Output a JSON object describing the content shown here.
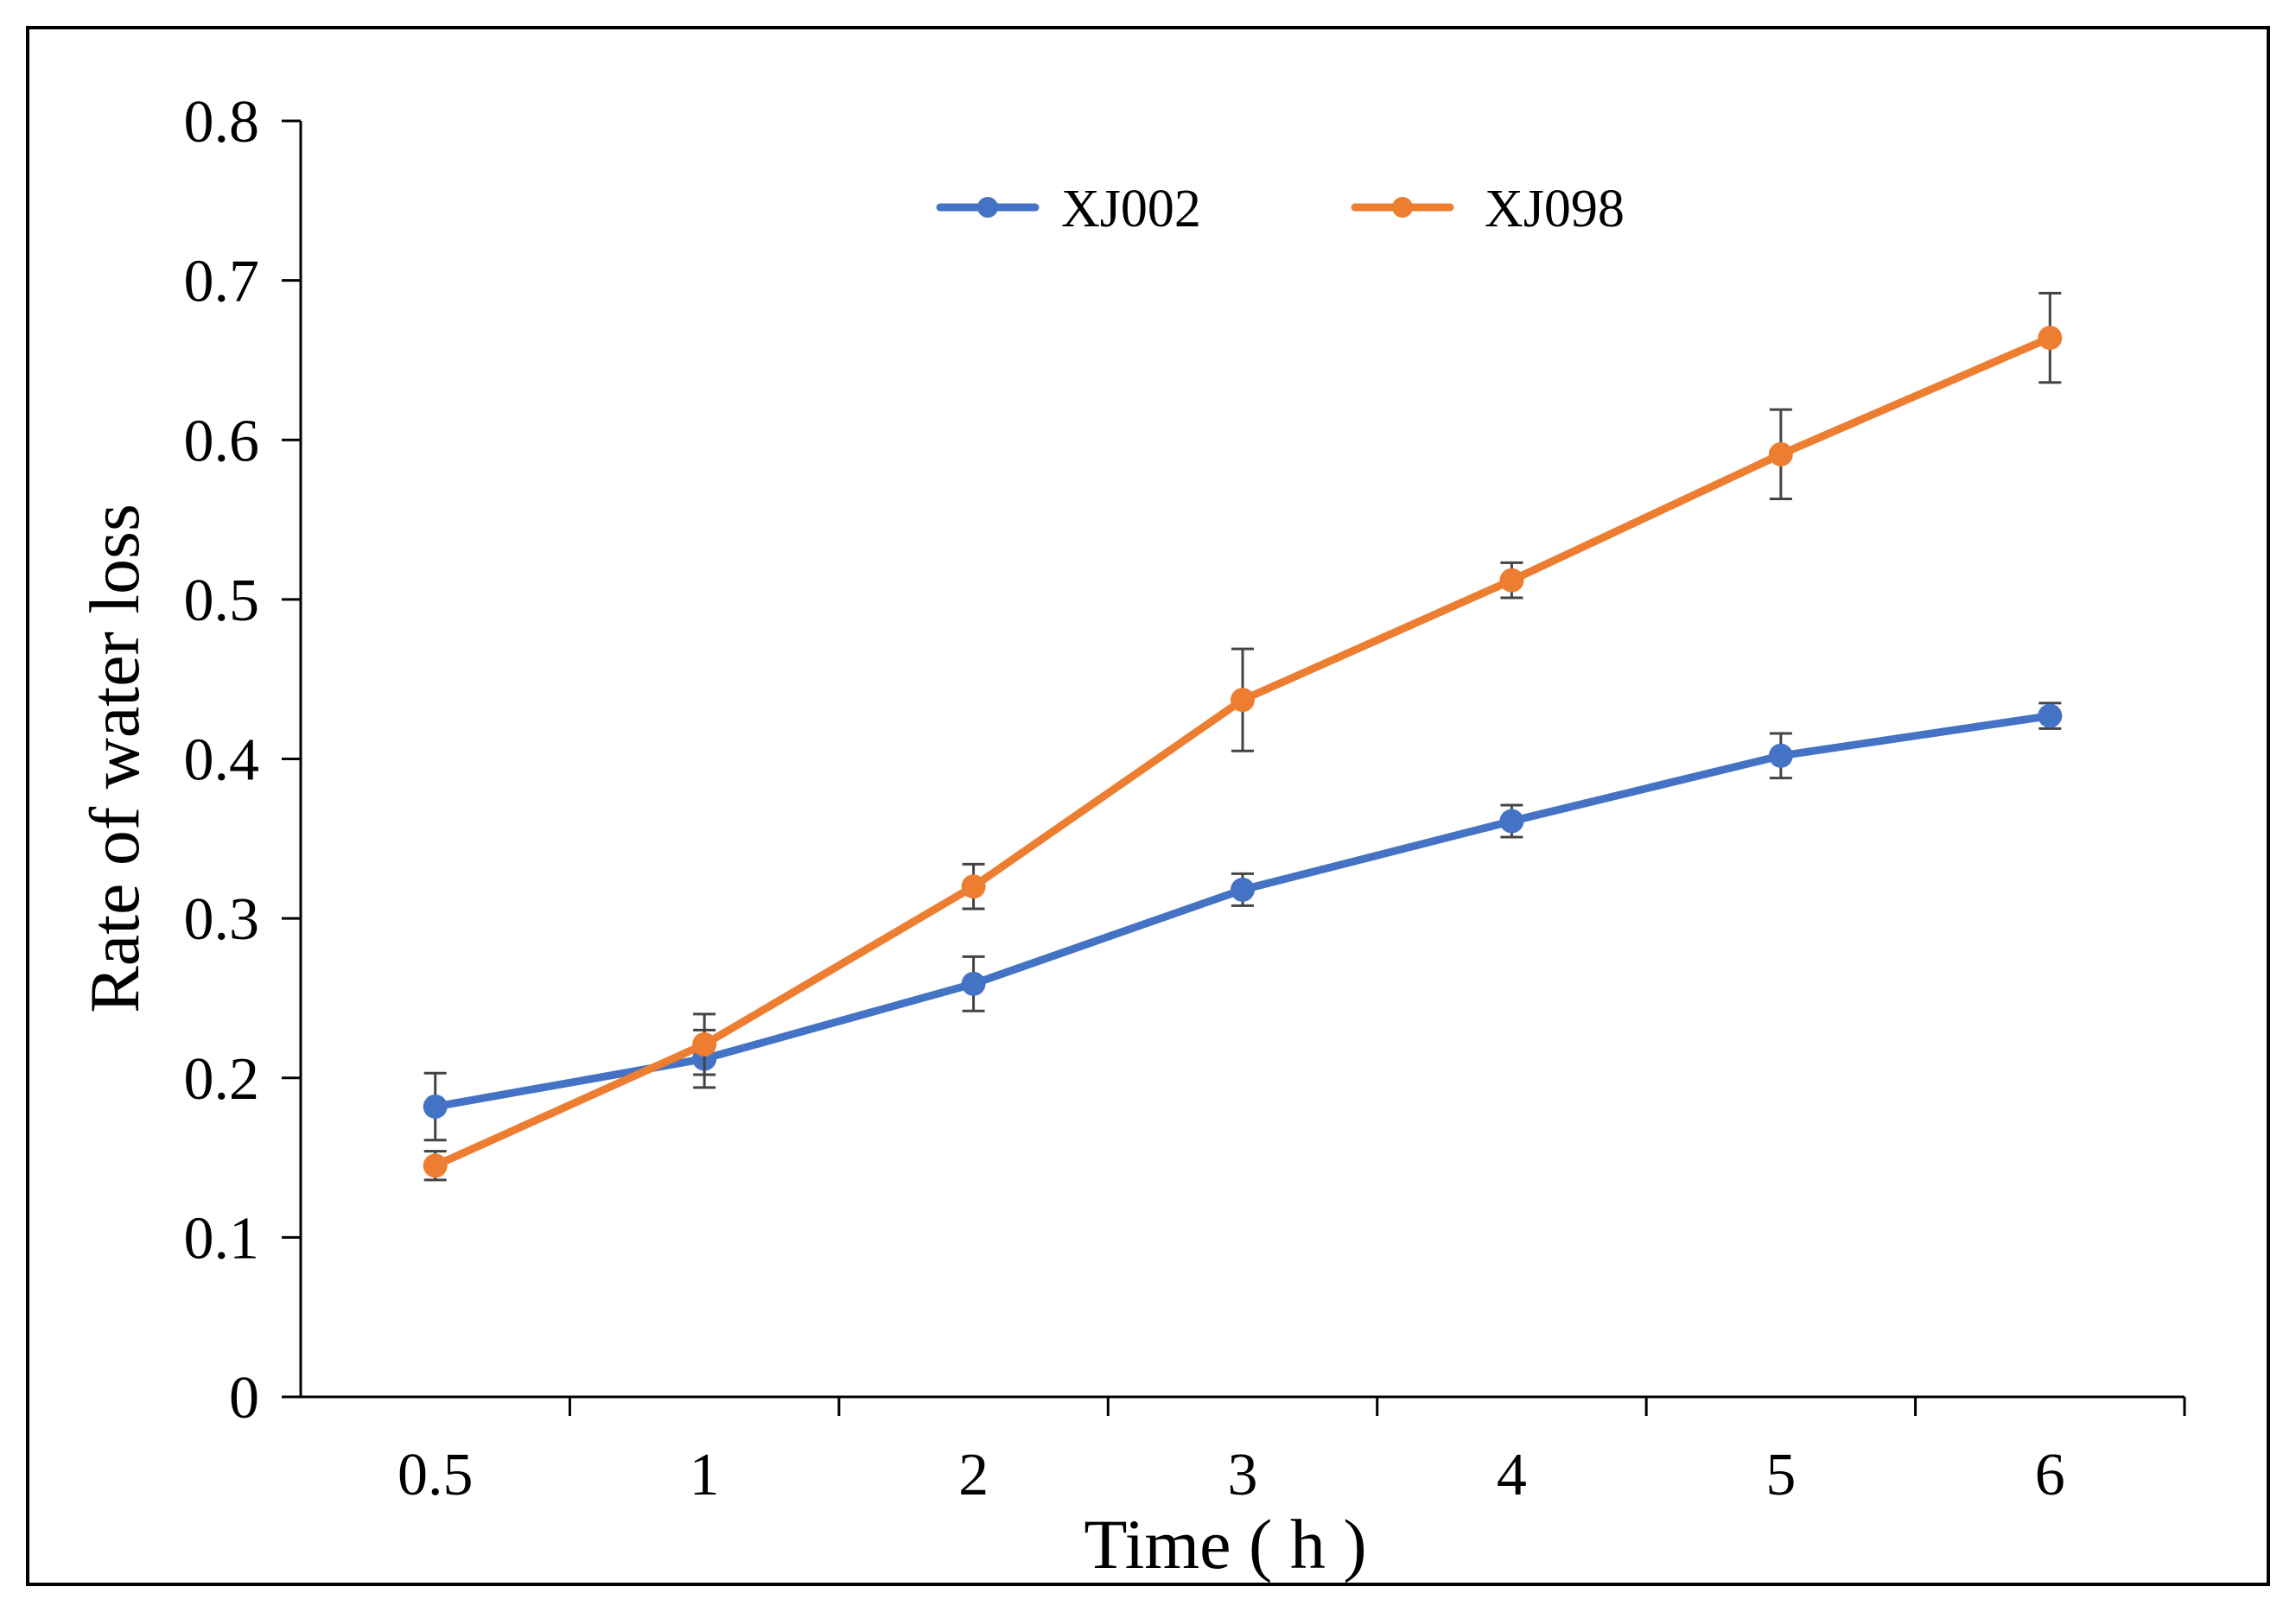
{
  "chart_data": {
    "type": "line",
    "title": "",
    "xlabel": "Time ( h )",
    "ylabel": "Rate of water loss",
    "categories": [
      "0.5",
      "1",
      "2",
      "3",
      "4",
      "5",
      "6"
    ],
    "ylim": [
      0,
      0.8
    ],
    "yticks": [
      "0",
      "0.1",
      "0.2",
      "0.3",
      "0.4",
      "0.5",
      "0.6",
      "0.7",
      "0.8"
    ],
    "grid": false,
    "legend_position": "top-center",
    "series": [
      {
        "name": "XJ002",
        "color": "#4472C4",
        "values": [
          0.182,
          0.212,
          0.259,
          0.318,
          0.361,
          0.402,
          0.427
        ],
        "errors": [
          0.021,
          0.018,
          0.017,
          0.01,
          0.01,
          0.014,
          0.008
        ]
      },
      {
        "name": "XJ098",
        "color": "#ED7D31",
        "values": [
          0.145,
          0.221,
          0.32,
          0.437,
          0.512,
          0.591,
          0.664
        ],
        "errors": [
          0.009,
          0.019,
          0.014,
          0.032,
          0.011,
          0.028,
          0.028
        ]
      }
    ]
  }
}
